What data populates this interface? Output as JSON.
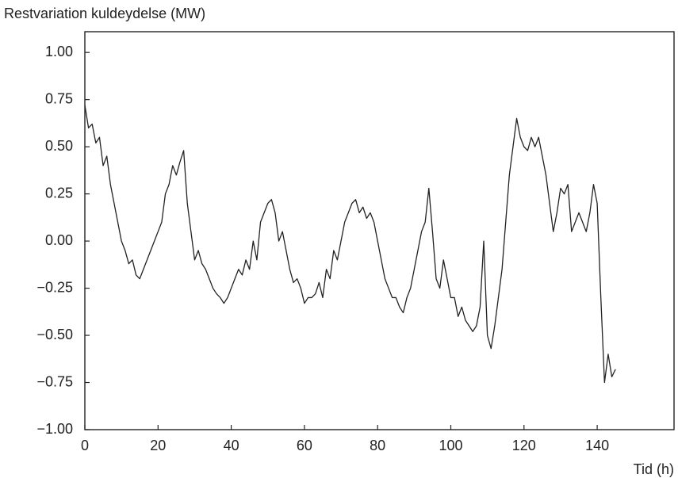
{
  "chart_data": {
    "type": "line",
    "ylabel": "Restvariation kuldeydelse (MW)",
    "xlabel": "Tid (h)",
    "x": [
      0,
      1,
      2,
      3,
      4,
      5,
      6,
      7,
      8,
      9,
      10,
      11,
      12,
      13,
      14,
      15,
      16,
      17,
      18,
      19,
      20,
      21,
      22,
      23,
      24,
      25,
      26,
      27,
      28,
      29,
      30,
      31,
      32,
      33,
      34,
      35,
      36,
      37,
      38,
      39,
      40,
      41,
      42,
      43,
      44,
      45,
      46,
      47,
      48,
      49,
      50,
      51,
      52,
      53,
      54,
      55,
      56,
      57,
      58,
      59,
      60,
      61,
      62,
      63,
      64,
      65,
      66,
      67,
      68,
      69,
      70,
      71,
      72,
      73,
      74,
      75,
      76,
      77,
      78,
      79,
      80,
      81,
      82,
      83,
      84,
      85,
      86,
      87,
      88,
      89,
      90,
      91,
      92,
      93,
      94,
      95,
      96,
      97,
      98,
      99,
      100,
      101,
      102,
      103,
      104,
      105,
      106,
      107,
      108,
      109,
      110,
      111,
      112,
      113,
      114,
      115,
      116,
      117,
      118,
      119,
      120,
      121,
      122,
      123,
      124,
      125,
      126,
      127,
      128,
      129,
      130,
      131,
      132,
      133,
      134,
      135,
      136,
      137,
      138,
      139,
      140,
      141,
      142,
      143,
      144,
      145
    ],
    "series": [
      {
        "color": "#222222",
        "values": [
          0.72,
          0.6,
          0.62,
          0.52,
          0.55,
          0.4,
          0.45,
          0.3,
          0.2,
          0.1,
          0.0,
          -0.05,
          -0.12,
          -0.1,
          -0.18,
          -0.2,
          -0.15,
          -0.1,
          -0.05,
          0.0,
          0.05,
          0.1,
          0.25,
          0.3,
          0.4,
          0.35,
          0.42,
          0.48,
          0.2,
          0.05,
          -0.1,
          -0.05,
          -0.12,
          -0.15,
          -0.2,
          -0.25,
          -0.28,
          -0.3,
          -0.33,
          -0.3,
          -0.25,
          -0.2,
          -0.15,
          -0.18,
          -0.1,
          -0.15,
          0.0,
          -0.1,
          0.1,
          0.15,
          0.2,
          0.22,
          0.15,
          0.0,
          0.05,
          -0.05,
          -0.15,
          -0.22,
          -0.2,
          -0.25,
          -0.33,
          -0.3,
          -0.3,
          -0.28,
          -0.22,
          -0.3,
          -0.15,
          -0.2,
          -0.05,
          -0.1,
          0.0,
          0.1,
          0.15,
          0.2,
          0.22,
          0.15,
          0.18,
          0.12,
          0.15,
          0.1,
          0.0,
          -0.1,
          -0.2,
          -0.25,
          -0.3,
          -0.3,
          -0.35,
          -0.38,
          -0.3,
          -0.25,
          -0.15,
          -0.05,
          0.05,
          0.1,
          0.28,
          0.05,
          -0.2,
          -0.25,
          -0.1,
          -0.2,
          -0.3,
          -0.3,
          -0.4,
          -0.35,
          -0.42,
          -0.45,
          -0.48,
          -0.45,
          -0.35,
          0.0,
          -0.5,
          -0.57,
          -0.45,
          -0.3,
          -0.15,
          0.1,
          0.35,
          0.5,
          0.65,
          0.55,
          0.5,
          0.48,
          0.55,
          0.5,
          0.55,
          0.45,
          0.35,
          0.2,
          0.05,
          0.15,
          0.28,
          0.25,
          0.3,
          0.05,
          0.1,
          0.15,
          0.1,
          0.05,
          0.15,
          0.3,
          0.2,
          -0.3,
          -0.75,
          -0.6,
          -0.72,
          -0.68
        ]
      }
    ],
    "xlim": [
      0,
      161
    ],
    "xticks": [
      0,
      20,
      40,
      60,
      80,
      100,
      120,
      140
    ],
    "ylim": [
      -1,
      1.11
    ],
    "yticks": [
      {
        "value": -1,
        "label": "−1.00"
      },
      {
        "value": -0.75,
        "label": "−0.75"
      },
      {
        "value": -0.5,
        "label": "−0.50"
      },
      {
        "value": -0.25,
        "label": "−0.25"
      },
      {
        "value": 0,
        "label": "0.00"
      },
      {
        "value": 0.25,
        "label": "0.25"
      },
      {
        "value": 0.5,
        "label": "0.50"
      },
      {
        "value": 0.75,
        "label": "0.75"
      },
      {
        "value": 1,
        "label": "1.00"
      }
    ]
  }
}
